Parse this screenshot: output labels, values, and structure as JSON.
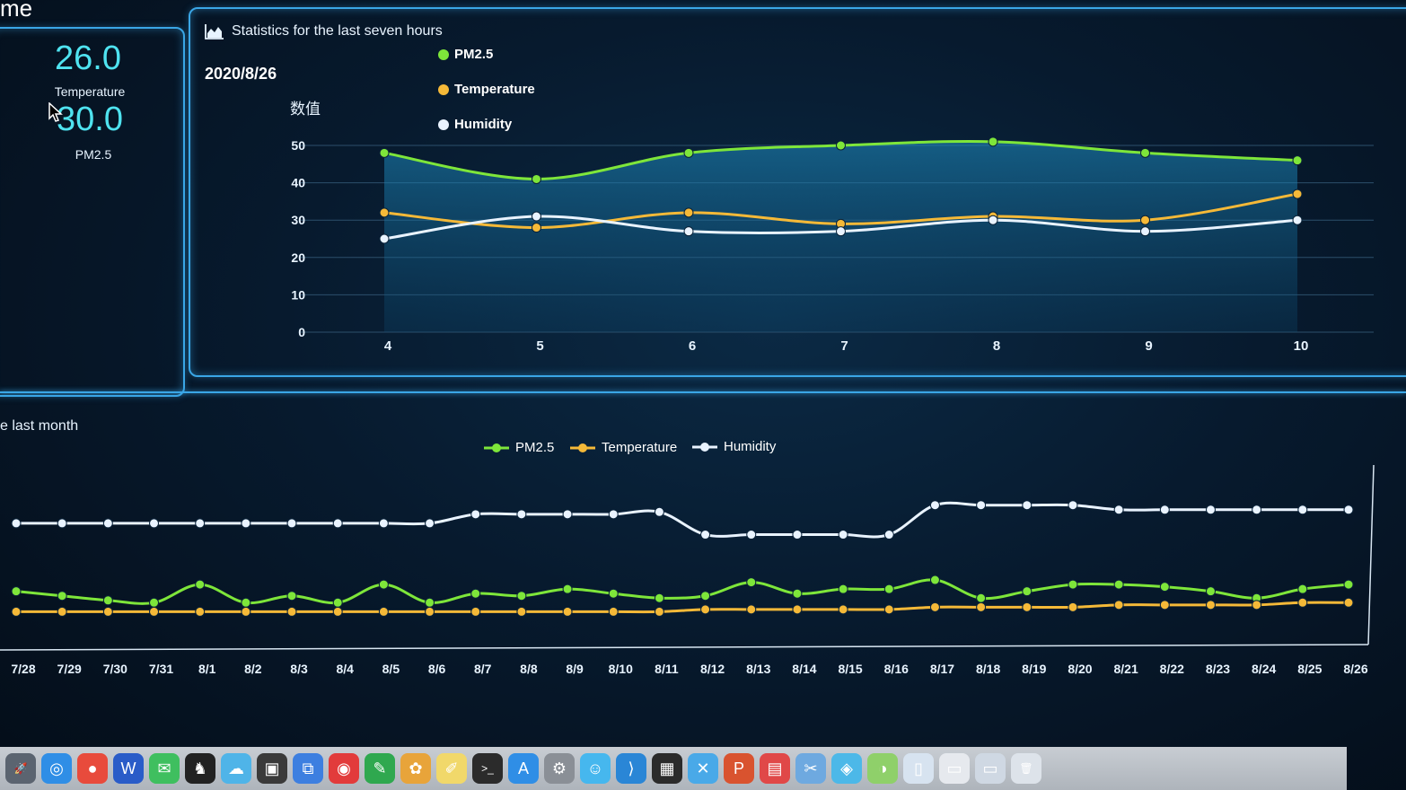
{
  "corner_title": "me",
  "left_panel": {
    "temperature_value": "26.0",
    "temperature_label": "Temperature",
    "pm25_value": "30.0",
    "pm25_label": "PM2.5"
  },
  "top_chart_header": {
    "title": "Statistics for the last seven hours",
    "date": "2020/8/26"
  },
  "bottom_chart_header": {
    "title": "e last month"
  },
  "colors": {
    "pm25": "#7ee63a",
    "temperature": "#f5b938",
    "humidity": "#e9f3ff",
    "accent": "#3aa6e6",
    "value": "#4fe3f0"
  },
  "chart_data": [
    {
      "type": "line",
      "title": "Statistics for the last seven hours",
      "ylabel": "数值",
      "xlabel": "",
      "categories": [
        "4",
        "5",
        "6",
        "7",
        "8",
        "9",
        "10"
      ],
      "ylim": [
        0,
        50
      ],
      "yticks": [
        "0",
        "10",
        "20",
        "30",
        "40",
        "50"
      ],
      "legend": "top-left",
      "grid": true,
      "series": [
        {
          "name": "PM2.5",
          "values": [
            48,
            41,
            48,
            50,
            51,
            48,
            46
          ]
        },
        {
          "name": "Temperature",
          "values": [
            32,
            28,
            32,
            29,
            31,
            30,
            37
          ]
        },
        {
          "name": "Humidity",
          "values": [
            25,
            31,
            27,
            27,
            30,
            27,
            30
          ]
        }
      ]
    },
    {
      "type": "line",
      "title": "e last month",
      "categories": [
        "7/28",
        "7/29",
        "7/30",
        "7/31",
        "8/1",
        "8/2",
        "8/3",
        "8/4",
        "8/5",
        "8/6",
        "8/7",
        "8/8",
        "8/9",
        "8/10",
        "8/11",
        "8/12",
        "8/13",
        "8/14",
        "8/15",
        "8/16",
        "8/17",
        "8/18",
        "8/19",
        "8/20",
        "8/21",
        "8/22",
        "8/23",
        "8/24",
        "8/25",
        "8/26"
      ],
      "ylim": [
        0,
        80
      ],
      "legend": "top-center",
      "grid": false,
      "series": [
        {
          "name": "PM2.5",
          "values": [
            33,
            31,
            29,
            28,
            36,
            28,
            31,
            28,
            36,
            28,
            32,
            31,
            34,
            32,
            30,
            31,
            37,
            32,
            34,
            34,
            38,
            30,
            33,
            36,
            36,
            35,
            33,
            30,
            34,
            36
          ]
        },
        {
          "name": "Temperature",
          "values": [
            24,
            24,
            24,
            24,
            24,
            24,
            24,
            24,
            24,
            24,
            24,
            24,
            24,
            24,
            24,
            25,
            25,
            25,
            25,
            25,
            26,
            26,
            26,
            26,
            27,
            27,
            27,
            27,
            28,
            28
          ]
        },
        {
          "name": "Humidity",
          "values": [
            63,
            63,
            63,
            63,
            63,
            63,
            63,
            63,
            63,
            63,
            67,
            67,
            67,
            67,
            68,
            58,
            58,
            58,
            58,
            58,
            71,
            71,
            71,
            71,
            69,
            69,
            69,
            69,
            69,
            69
          ]
        }
      ]
    }
  ],
  "dock": {
    "icons": [
      "launchpad-icon",
      "safari-icon",
      "chrome-icon",
      "word-icon",
      "wechat-icon",
      "qq-icon",
      "cloud-icon",
      "terminal-app-icon",
      "screenshot-icon",
      "netease-music-icon",
      "evernote-icon",
      "photos-icon",
      "notes-icon",
      "terminal-icon",
      "app-store-icon",
      "system-preferences-icon",
      "finder-icon",
      "vscode-icon",
      "activity-monitor-icon",
      "xmind-icon",
      "powerpoint-icon",
      "calendar-icon",
      "preview-icon",
      "browser-icon",
      "maps-icon",
      "folder-icon",
      "window-icon",
      "downloads-icon",
      "trash-icon"
    ]
  }
}
